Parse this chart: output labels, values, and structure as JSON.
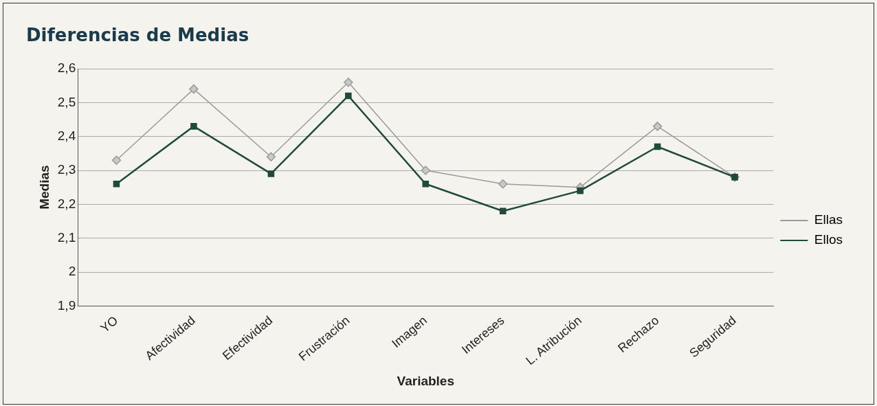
{
  "chart_data": {
    "type": "line",
    "title": "Diferencias de Medias",
    "xlabel": "Variables",
    "ylabel": "Medias",
    "categories": [
      "YO",
      "Afectividad",
      "Efectividad",
      "Frustración",
      "Imagen",
      "Intereses",
      "L. Atribución",
      "Rechazo",
      "Seguridad"
    ],
    "series": [
      {
        "name": "Ellas",
        "color": "#9a9a9a",
        "marker": "diamond",
        "values": [
          2.33,
          2.54,
          2.34,
          2.56,
          2.3,
          2.26,
          2.25,
          2.43,
          2.28
        ]
      },
      {
        "name": "Ellos",
        "color": "#1f4a3c",
        "marker": "square",
        "values": [
          2.26,
          2.43,
          2.29,
          2.52,
          2.26,
          2.18,
          2.24,
          2.37,
          2.28
        ]
      }
    ],
    "ylim": [
      1.9,
      2.6
    ],
    "yticks": [
      {
        "value": 1.9,
        "label": "1,9"
      },
      {
        "value": 2,
        "label": "2"
      },
      {
        "value": 2.1,
        "label": "2,1"
      },
      {
        "value": 2.2,
        "label": "2,2"
      },
      {
        "value": 2.3,
        "label": "2,3"
      },
      {
        "value": 2.4,
        "label": "2,4"
      },
      {
        "value": 2.5,
        "label": "2,5"
      },
      {
        "value": 2.6,
        "label": "2,6"
      }
    ],
    "grid": "y",
    "legend": "right",
    "line_style": "solid"
  }
}
